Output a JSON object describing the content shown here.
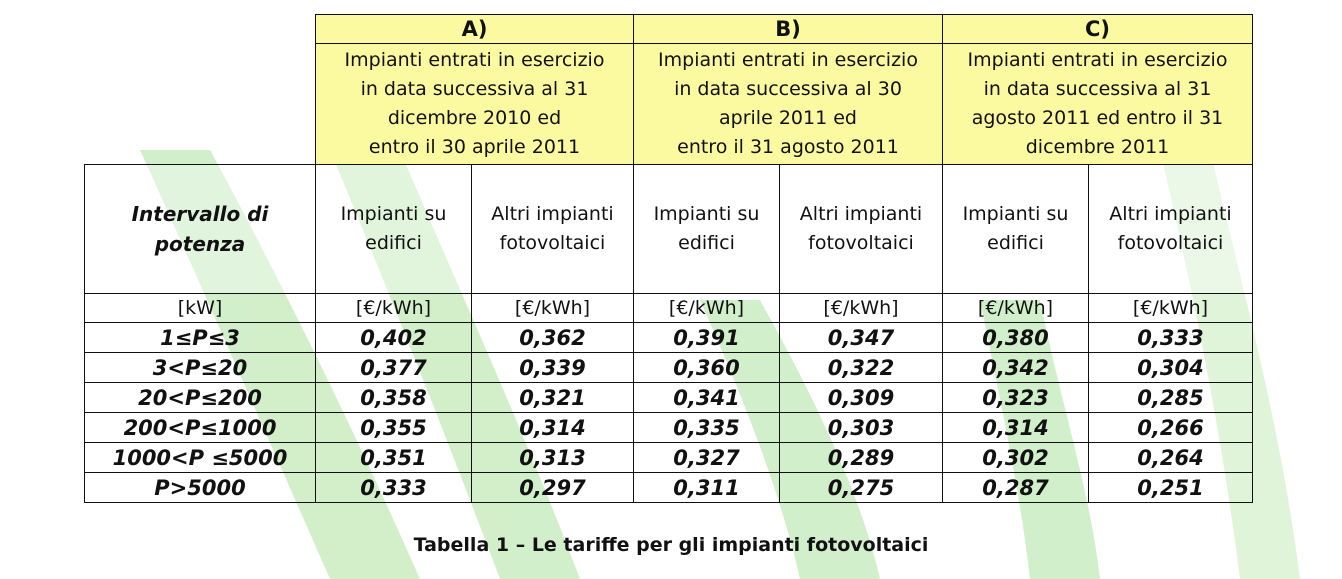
{
  "table": {
    "groups": [
      {
        "letter": "A)",
        "description": [
          "Impianti entrati in esercizio",
          "in data successiva al 31",
          "dicembre 2010 ed",
          "entro il 30 aprile 2011"
        ]
      },
      {
        "letter": "B)",
        "description": [
          "Impianti entrati in esercizio",
          "in data successiva al 30",
          "aprile 2011 ed",
          "entro il 31 agosto 2011"
        ]
      },
      {
        "letter": "C)",
        "description": [
          "Impianti entrati in esercizio",
          "in data successiva al 31",
          "agosto 2011 ed entro il 31",
          "dicembre 2011"
        ]
      }
    ],
    "row_label": [
      "Intervallo di",
      "potenza"
    ],
    "subheaders": [
      [
        "Impianti su",
        "edifici"
      ],
      [
        "Altri impianti",
        "fotovoltaici"
      ],
      [
        "Impianti su",
        "edifici"
      ],
      [
        "Altri impianti",
        "fotovoltaici"
      ],
      [
        "Impianti su",
        "edifici"
      ],
      [
        "Altri impianti",
        "fotovoltaici"
      ]
    ],
    "units": [
      "[kW]",
      "[€/kWh]",
      "[€/kWh]",
      "[€/kWh]",
      "[€/kWh]",
      "[€/kWh]",
      "[€/kWh]"
    ],
    "rows": [
      {
        "range": "1≤P≤3",
        "values": [
          "0,402",
          "0,362",
          "0,391",
          "0,347",
          "0,380",
          "0,333"
        ]
      },
      {
        "range": "3<P≤20",
        "values": [
          "0,377",
          "0,339",
          "0,360",
          "0,322",
          "0,342",
          "0,304"
        ]
      },
      {
        "range": "20<P≤200",
        "values": [
          "0,358",
          "0,321",
          "0,341",
          "0,309",
          "0,323",
          "0,285"
        ]
      },
      {
        "range": "200<P≤1000",
        "values": [
          "0,355",
          "0,314",
          "0,335",
          "0,303",
          "0,314",
          "0,266"
        ]
      },
      {
        "range": "1000<P ≤5000",
        "values": [
          "0,351",
          "0,313",
          "0,327",
          "0,289",
          "0,302",
          "0,264"
        ]
      },
      {
        "range": "P>5000",
        "values": [
          "0,333",
          "0,297",
          "0,311",
          "0,275",
          "0,287",
          "0,251"
        ]
      }
    ]
  },
  "caption": "Tabella 1 – Le tariffe per gli impianti fotovoltaici",
  "colors": {
    "header_fill": "#fcfaa0",
    "watermark": "#7fd26a",
    "border": "#111111"
  }
}
